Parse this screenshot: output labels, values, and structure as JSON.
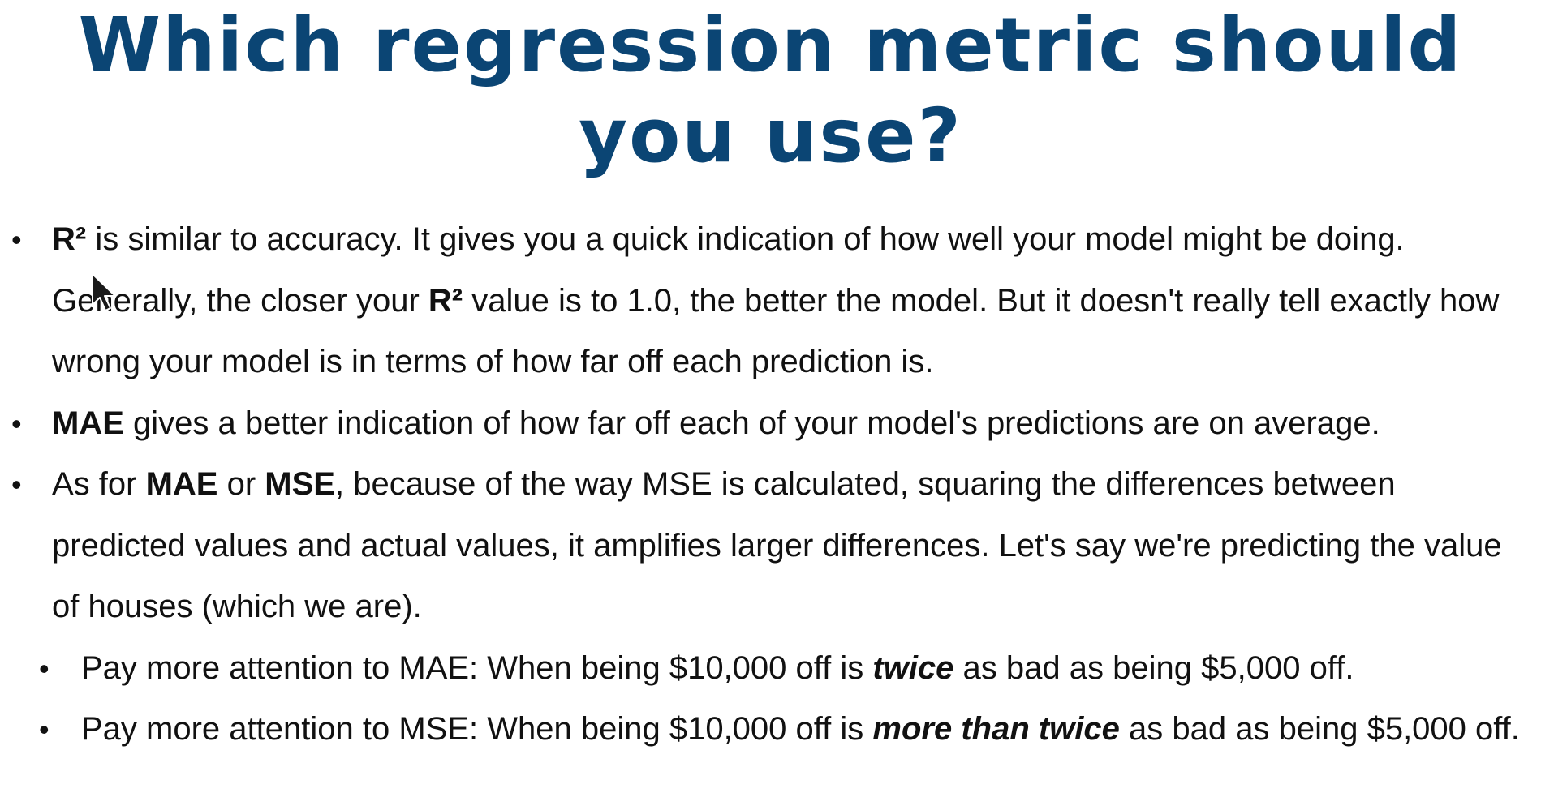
{
  "title": "Which regression metric should you use?",
  "bullets": [
    {
      "r2_a": "R²",
      "text_a": " is similar to accuracy. It gives you a quick indication of how well your model might be doing. Generally, the closer your ",
      "r2_b": "R²",
      "text_b": " value is to 1.0, the better the model. But it doesn't really tell exactly how wrong your model is in terms of how far off each prediction is."
    },
    {
      "mae": "MAE",
      "text": " gives a better indication of how far off each of your model's predictions are on average."
    },
    {
      "text_a": "As for ",
      "mae": "MAE",
      "text_b": " or ",
      "mse": "MSE",
      "text_c": ", because of the way MSE is calculated, squaring the differences between predicted values and actual values, it amplifies larger differences. Let's say we're predicting the value of houses (which we are).",
      "sub_bullets": [
        {
          "text_a": "Pay more attention to MAE: When being $10,000 off is ",
          "emph": "twice",
          "text_b": " as bad as being $5,000 off."
        },
        {
          "text_a": "Pay more attention to MSE: When being $10,000 off is ",
          "emph": "more than twice",
          "text_b": " as bad as being $5,000 off."
        }
      ]
    }
  ],
  "icons": {
    "cursor": "mouse-pointer-icon"
  }
}
